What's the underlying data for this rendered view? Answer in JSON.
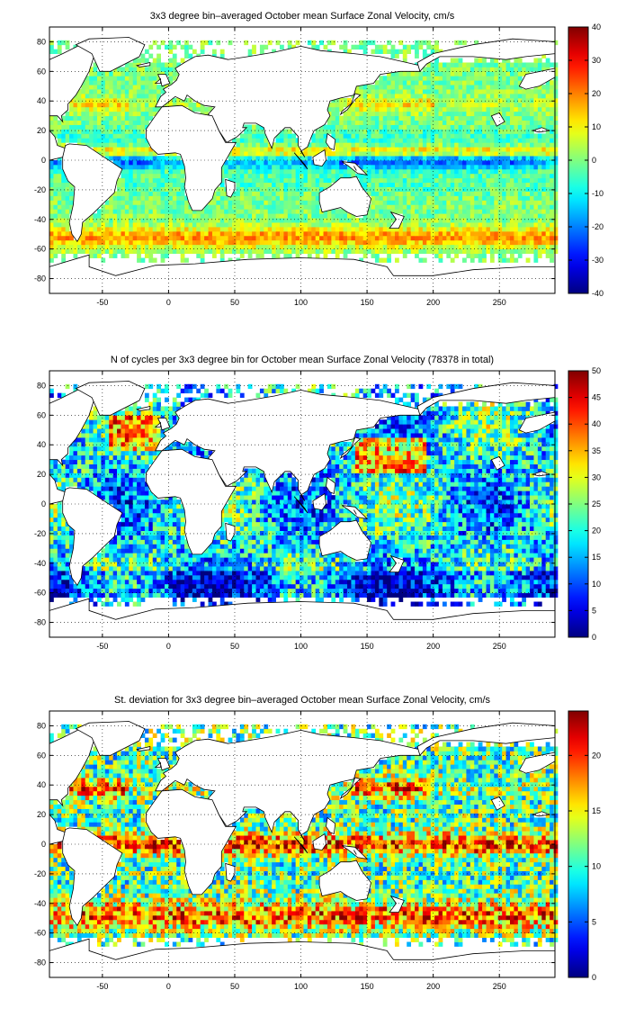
{
  "chart_data": [
    {
      "type": "heatmap",
      "title": "3x3 degree bin–averaged October mean Surface Zonal Velocity, cm/s",
      "xlabel": "",
      "ylabel": "",
      "xlim": [
        -90,
        292
      ],
      "ylim": [
        -90,
        90
      ],
      "x_ticks": [
        -50,
        0,
        50,
        100,
        150,
        200,
        250
      ],
      "y_ticks": [
        80,
        60,
        40,
        20,
        0,
        -20,
        -40,
        -60,
        -80
      ],
      "grid": true,
      "colorbar": {
        "ticks": [
          40,
          30,
          20,
          10,
          0,
          -10,
          -20,
          -30,
          -40
        ],
        "min": -40,
        "max": 40,
        "colormap": "jet"
      },
      "bin_size_deg": 3,
      "field": "zonal_velocity"
    },
    {
      "type": "heatmap",
      "title": "N of cycles per 3x3 degree bin for October mean Surface Zonal Velocity (78378 in total)",
      "xlabel": "",
      "ylabel": "",
      "xlim": [
        -90,
        292
      ],
      "ylim": [
        -90,
        90
      ],
      "x_ticks": [
        -50,
        0,
        50,
        100,
        150,
        200,
        250
      ],
      "y_ticks": [
        80,
        60,
        40,
        20,
        0,
        -20,
        -40,
        -60,
        -80
      ],
      "grid": true,
      "colorbar": {
        "ticks": [
          50,
          45,
          40,
          35,
          30,
          25,
          20,
          15,
          10,
          5,
          0
        ],
        "min": 0,
        "max": 50,
        "colormap": "jet"
      },
      "bin_size_deg": 3,
      "total_cycles": 78378,
      "field": "cycle_count"
    },
    {
      "type": "heatmap",
      "title": "St. deviation for 3x3 degree bin–averaged October mean Surface Zonal Velocity, cm/s",
      "xlabel": "",
      "ylabel": "",
      "xlim": [
        -90,
        292
      ],
      "ylim": [
        -90,
        90
      ],
      "x_ticks": [
        -50,
        0,
        50,
        100,
        150,
        200,
        250
      ],
      "y_ticks": [
        80,
        60,
        40,
        20,
        0,
        -20,
        -40,
        -60,
        -80
      ],
      "grid": true,
      "colorbar": {
        "ticks": [
          20,
          15,
          10,
          5,
          0
        ],
        "min": 0,
        "max": 24,
        "colormap": "jet"
      },
      "bin_size_deg": 3,
      "field": "std_dev"
    }
  ]
}
